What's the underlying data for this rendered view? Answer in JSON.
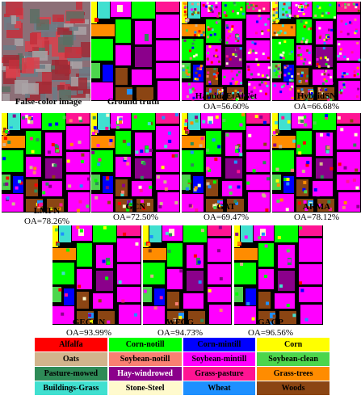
{
  "panels": [
    {
      "name": "False-color image",
      "oa": "",
      "kind": "false"
    },
    {
      "name": "Ground truth",
      "oa": "",
      "kind": "gt"
    },
    {
      "name": "HamidaEtAlNet",
      "oa": "OA=56.60%",
      "kind": "noisy"
    },
    {
      "name": "HybridSN",
      "oa": "OA=66.68%",
      "kind": "noisy"
    },
    {
      "name": "LMFN",
      "oa": "OA=78.26%",
      "kind": "mid"
    },
    {
      "name": "GCN",
      "oa": "OA=72.50%",
      "kind": "mid"
    },
    {
      "name": "GAT",
      "oa": "OA=69.47%",
      "kind": "mid"
    },
    {
      "name": "ARMA",
      "oa": "OA=78.12%",
      "kind": "mid"
    },
    {
      "name": "GEGCN",
      "oa": "OA=93.99%",
      "kind": "clean"
    },
    {
      "name": "WFCG",
      "oa": "OA=94.73%",
      "kind": "clean"
    },
    {
      "name": "GAGP",
      "oa": "OA=96.56%",
      "kind": "clean"
    }
  ],
  "legend": [
    {
      "label": "Alfalfa",
      "color": "#ff0000",
      "text_color": "#000000"
    },
    {
      "label": "Corn-notill",
      "color": "#00ff00",
      "text_color": "#000000"
    },
    {
      "label": "Corn-mintill",
      "color": "#0000ff",
      "text_color": "#000000"
    },
    {
      "label": "Corn",
      "color": "#ffff00",
      "text_color": "#000000"
    },
    {
      "label": "Oats",
      "color": "#d2b48c",
      "text_color": "#000000"
    },
    {
      "label": "Soybean-notill",
      "color": "#fa8072",
      "text_color": "#000000"
    },
    {
      "label": "Soybean-mintill",
      "color": "#ff00ff",
      "text_color": "#000000"
    },
    {
      "label": "Soybean-clean",
      "color": "#4cd64c",
      "text_color": "#000000"
    },
    {
      "label": "Pasture-mowed",
      "color": "#2e8b57",
      "text_color": "#000000"
    },
    {
      "label": "Hay-windrowed",
      "color": "#8b008b",
      "text_color": "#ffffff"
    },
    {
      "label": "Grass-pasture",
      "color": "#ff1493",
      "text_color": "#000000"
    },
    {
      "label": "Grass-trees",
      "color": "#ff8c00",
      "text_color": "#000000"
    },
    {
      "label": "Buildings-Grass",
      "color": "#40e0d0",
      "text_color": "#000000"
    },
    {
      "label": "Stone-Steel",
      "color": "#fffacd",
      "text_color": "#000000"
    },
    {
      "label": "Wheat",
      "color": "#1e90ff",
      "text_color": "#000000"
    },
    {
      "label": "Woods",
      "color": "#8b4513",
      "text_color": "#000000"
    }
  ]
}
